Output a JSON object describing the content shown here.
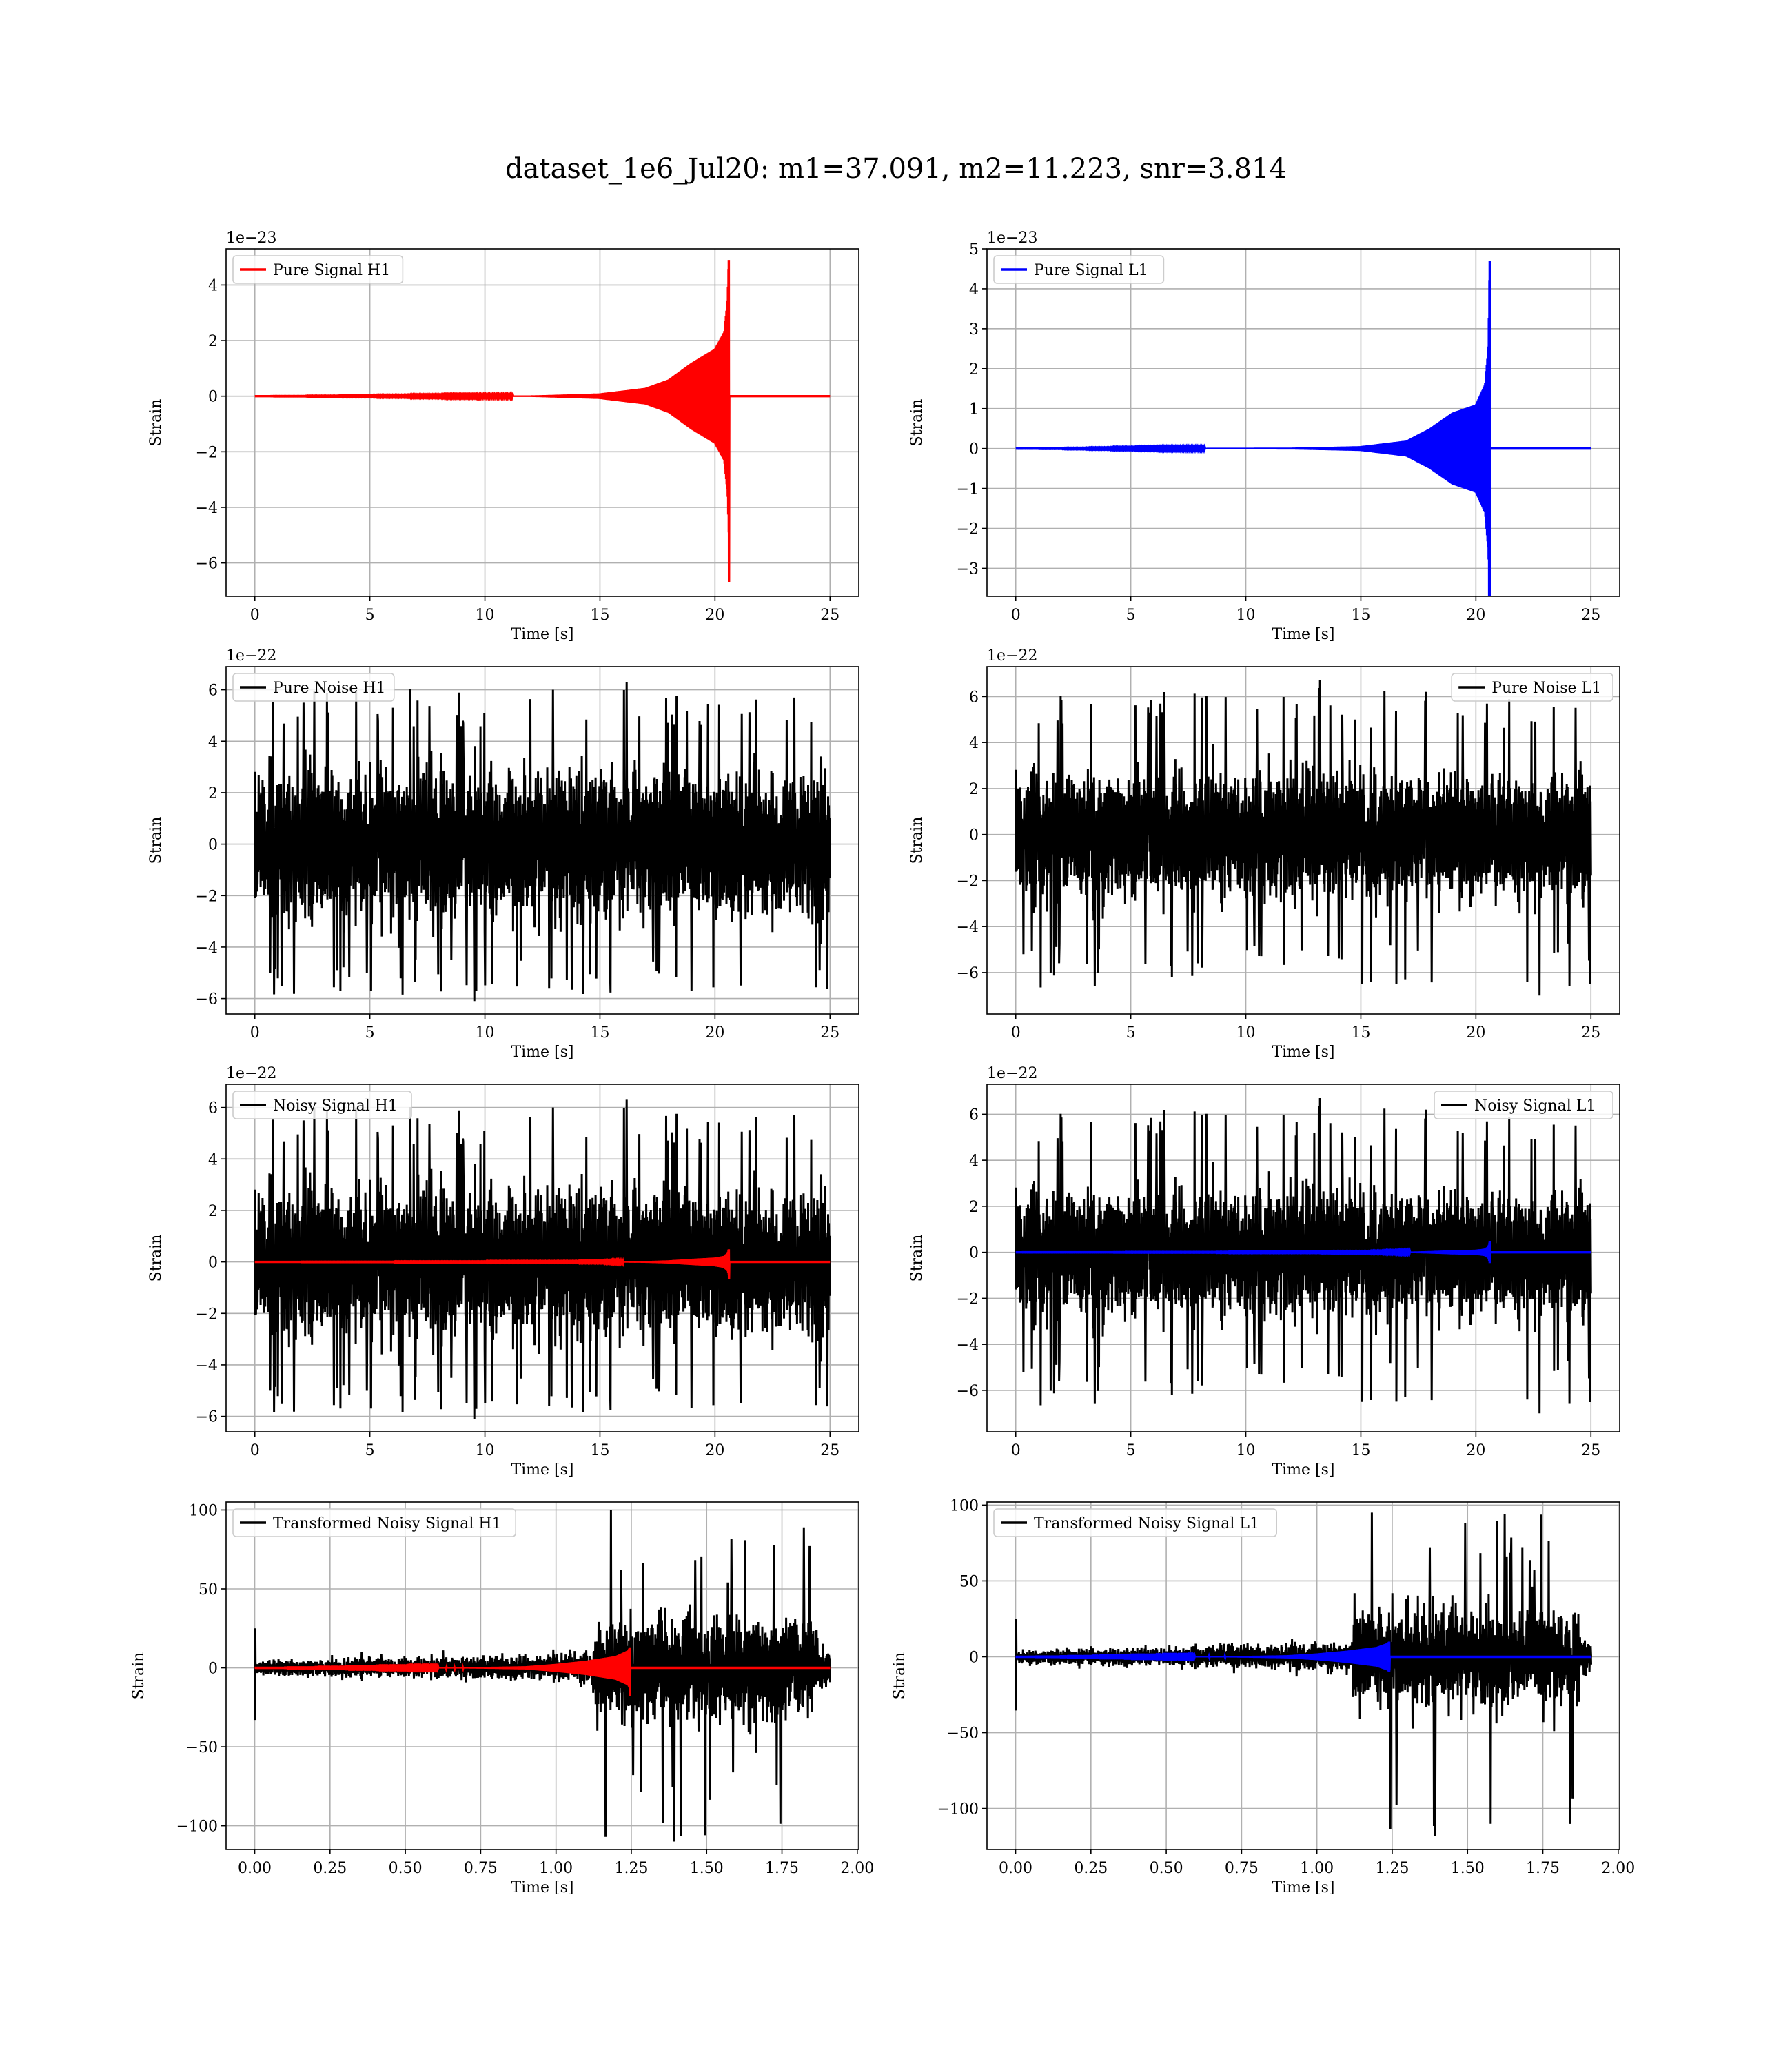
{
  "figure": {
    "title": "dataset_1e6_Jul20: m1=37.091, m2=11.223, snr=3.814"
  },
  "chart_data": [
    {
      "id": "pure-signal-h1",
      "type": "line",
      "xlabel": "Time [s]",
      "ylabel": "Strain",
      "offset_text": "1e−23",
      "xlim": [
        -1.25,
        26.25
      ],
      "ylim": [
        -7.2,
        5.3
      ],
      "xticks": [
        0,
        5,
        10,
        15,
        20,
        25
      ],
      "xtick_labels": [
        "0",
        "5",
        "10",
        "15",
        "20",
        "25"
      ],
      "yticks": [
        -6,
        -4,
        -2,
        0,
        2,
        4
      ],
      "ytick_labels": [
        "−6",
        "−4",
        "−2",
        "0",
        "2",
        "4"
      ],
      "grid": true,
      "legend_position": "upper-left",
      "series": [
        {
          "name": "Pure Signal H1",
          "color": "#ff0000",
          "kind": "chirp",
          "x_start": 0,
          "x_end": 25,
          "merger_time": 20.6,
          "envelope": [
            [
              0,
              0
            ],
            [
              12,
              0.02
            ],
            [
              15,
              0.1
            ],
            [
              17,
              0.3
            ],
            [
              18,
              0.6
            ],
            [
              19,
              1.2
            ],
            [
              20,
              1.7
            ],
            [
              20.4,
              2.3
            ],
            [
              20.55,
              3.5
            ],
            [
              20.6,
              4.9
            ],
            [
              20.61,
              0
            ]
          ],
          "peak_high": 4.9,
          "peak_low": -6.7
        }
      ]
    },
    {
      "id": "pure-signal-l1",
      "type": "line",
      "xlabel": "Time [s]",
      "ylabel": "Strain",
      "offset_text": "1e−23",
      "xlim": [
        -1.25,
        26.25
      ],
      "ylim": [
        -3.7,
        5.0
      ],
      "xticks": [
        0,
        5,
        10,
        15,
        20,
        25
      ],
      "xtick_labels": [
        "0",
        "5",
        "10",
        "15",
        "20",
        "25"
      ],
      "yticks": [
        -3,
        -2,
        -1,
        0,
        1,
        2,
        3,
        4,
        5
      ],
      "ytick_labels": [
        "−3",
        "−2",
        "−1",
        "0",
        "1",
        "2",
        "3",
        "4",
        "5"
      ],
      "grid": true,
      "legend_position": "upper-left",
      "series": [
        {
          "name": "Pure Signal L1",
          "color": "#0000ff",
          "kind": "chirp",
          "x_start": 0,
          "x_end": 25,
          "merger_time": 20.6,
          "envelope": [
            [
              0,
              0
            ],
            [
              12,
              0.02
            ],
            [
              15,
              0.06
            ],
            [
              17,
              0.2
            ],
            [
              18,
              0.5
            ],
            [
              19,
              0.9
            ],
            [
              20,
              1.1
            ],
            [
              20.4,
              1.6
            ],
            [
              20.55,
              2.6
            ],
            [
              20.6,
              4.7
            ],
            [
              20.61,
              0
            ]
          ],
          "peak_high": 4.7,
          "peak_low": -3.3
        }
      ]
    },
    {
      "id": "pure-noise-h1",
      "type": "line",
      "xlabel": "Time [s]",
      "ylabel": "Strain",
      "offset_text": "1e−22",
      "xlim": [
        -1.25,
        26.25
      ],
      "ylim": [
        -6.6,
        6.9
      ],
      "xticks": [
        0,
        5,
        10,
        15,
        20,
        25
      ],
      "xtick_labels": [
        "0",
        "5",
        "10",
        "15",
        "20",
        "25"
      ],
      "yticks": [
        -6,
        -4,
        -2,
        0,
        2,
        4,
        6
      ],
      "ytick_labels": [
        "−6",
        "−4",
        "−2",
        "0",
        "2",
        "4",
        "6"
      ],
      "grid": true,
      "legend_position": "upper-left",
      "series": [
        {
          "name": "Pure Noise H1",
          "color": "#000000",
          "kind": "noise",
          "x_start": 0,
          "x_end": 25,
          "core_amplitude": 3.6,
          "spike_high": 6.3,
          "spike_low": -6.1,
          "seed": 11
        }
      ]
    },
    {
      "id": "pure-noise-l1",
      "type": "line",
      "xlabel": "Time [s]",
      "ylabel": "Strain",
      "offset_text": "1e−22",
      "xlim": [
        -1.25,
        26.25
      ],
      "ylim": [
        -7.8,
        7.3
      ],
      "xticks": [
        0,
        5,
        10,
        15,
        20,
        25
      ],
      "xtick_labels": [
        "0",
        "5",
        "10",
        "15",
        "20",
        "25"
      ],
      "yticks": [
        -6,
        -4,
        -2,
        0,
        2,
        4,
        6
      ],
      "ytick_labels": [
        "−6",
        "−4",
        "−2",
        "0",
        "2",
        "4",
        "6"
      ],
      "grid": true,
      "legend_position": "upper-right",
      "series": [
        {
          "name": "Pure Noise L1",
          "color": "#000000",
          "kind": "noise",
          "x_start": 0,
          "x_end": 25,
          "core_amplitude": 3.5,
          "spike_high": 6.7,
          "spike_low": -7.0,
          "seed": 23
        }
      ]
    },
    {
      "id": "noisy-signal-h1",
      "type": "line",
      "xlabel": "Time [s]",
      "ylabel": "Strain",
      "offset_text": "1e−22",
      "xlim": [
        -1.25,
        26.25
      ],
      "ylim": [
        -6.6,
        6.9
      ],
      "xticks": [
        0,
        5,
        10,
        15,
        20,
        25
      ],
      "xtick_labels": [
        "0",
        "5",
        "10",
        "15",
        "20",
        "25"
      ],
      "yticks": [
        -6,
        -4,
        -2,
        0,
        2,
        4,
        6
      ],
      "ytick_labels": [
        "−6",
        "−4",
        "−2",
        "0",
        "2",
        "4",
        "6"
      ],
      "grid": true,
      "legend_position": "upper-left",
      "series": [
        {
          "name": "Noisy Signal H1",
          "color": "#000000",
          "kind": "noise",
          "x_start": 0,
          "x_end": 25,
          "core_amplitude": 3.6,
          "spike_high": 6.3,
          "spike_low": -6.1,
          "seed": 11
        },
        {
          "name": "",
          "color": "#ff0000",
          "kind": "chirp",
          "x_start": 0,
          "x_end": 25,
          "merger_time": 20.6,
          "envelope": [
            [
              0,
              0
            ],
            [
              15,
              0.01
            ],
            [
              17,
              0.03
            ],
            [
              18,
              0.06
            ],
            [
              19,
              0.12
            ],
            [
              20,
              0.17
            ],
            [
              20.4,
              0.23
            ],
            [
              20.55,
              0.35
            ],
            [
              20.6,
              0.49
            ],
            [
              20.61,
              0
            ]
          ],
          "peak_high": 0.49,
          "peak_low": -0.67
        }
      ]
    },
    {
      "id": "noisy-signal-l1",
      "type": "line",
      "xlabel": "Time [s]",
      "ylabel": "Strain",
      "offset_text": "1e−22",
      "xlim": [
        -1.25,
        26.25
      ],
      "ylim": [
        -7.8,
        7.3
      ],
      "xticks": [
        0,
        5,
        10,
        15,
        20,
        25
      ],
      "xtick_labels": [
        "0",
        "5",
        "10",
        "15",
        "20",
        "25"
      ],
      "yticks": [
        -6,
        -4,
        -2,
        0,
        2,
        4,
        6
      ],
      "ytick_labels": [
        "−6",
        "−4",
        "−2",
        "0",
        "2",
        "4",
        "6"
      ],
      "grid": true,
      "legend_position": "upper-right",
      "series": [
        {
          "name": "Noisy Signal L1",
          "color": "#000000",
          "kind": "noise",
          "x_start": 0,
          "x_end": 25,
          "core_amplitude": 3.5,
          "spike_high": 6.7,
          "spike_low": -7.0,
          "seed": 23
        },
        {
          "name": "",
          "color": "#0000ff",
          "kind": "chirp",
          "x_start": 0,
          "x_end": 25,
          "merger_time": 20.6,
          "envelope": [
            [
              0,
              0
            ],
            [
              15,
              0.01
            ],
            [
              17,
              0.02
            ],
            [
              18,
              0.05
            ],
            [
              19,
              0.09
            ],
            [
              20,
              0.11
            ],
            [
              20.4,
              0.16
            ],
            [
              20.55,
              0.26
            ],
            [
              20.6,
              0.47
            ],
            [
              20.61,
              0
            ]
          ],
          "peak_high": 0.47,
          "peak_low": -0.33
        }
      ]
    },
    {
      "id": "transformed-noisy-signal-h1",
      "type": "line",
      "xlabel": "Time [s]",
      "ylabel": "Strain",
      "offset_text": "",
      "xlim": [
        -0.095,
        2.005
      ],
      "ylim": [
        -115,
        105
      ],
      "xticks": [
        0,
        0.25,
        0.5,
        0.75,
        1.0,
        1.25,
        1.5,
        1.75,
        2.0
      ],
      "xtick_labels": [
        "0.00",
        "0.25",
        "0.50",
        "0.75",
        "1.00",
        "1.25",
        "1.50",
        "1.75",
        "2.00"
      ],
      "yticks": [
        -100,
        -50,
        0,
        50,
        100
      ],
      "ytick_labels": [
        "−100",
        "−50",
        "0",
        "50",
        "100"
      ],
      "grid": true,
      "legend_position": "upper-left",
      "series": [
        {
          "name": "Transformed Noisy Signal H1",
          "color": "#000000",
          "kind": "whitened",
          "x_start": 0,
          "x_end": 1.91,
          "burst_start": 1.12,
          "burst_end": 1.87,
          "quiet_amplitude": 6,
          "burst_amplitude": 42,
          "spike_high": 100,
          "spike_low": -110,
          "seed": 37
        },
        {
          "name": "",
          "color": "#ff0000",
          "kind": "chirp",
          "x_start": 0,
          "x_end": 1.91,
          "merger_time": 1.245,
          "envelope": [
            [
              0,
              0
            ],
            [
              0.7,
              0.3
            ],
            [
              0.9,
              1.0
            ],
            [
              1.0,
              2.5
            ],
            [
              1.1,
              4.5
            ],
            [
              1.2,
              7.5
            ],
            [
              1.24,
              11
            ],
            [
              1.245,
              13
            ],
            [
              1.246,
              0
            ]
          ],
          "peak_high": 13,
          "peak_low": -18
        }
      ]
    },
    {
      "id": "transformed-noisy-signal-l1",
      "type": "line",
      "xlabel": "Time [s]",
      "ylabel": "Strain",
      "offset_text": "",
      "xlim": [
        -0.095,
        2.005
      ],
      "ylim": [
        -127,
        102
      ],
      "xticks": [
        0,
        0.25,
        0.5,
        0.75,
        1.0,
        1.25,
        1.5,
        1.75,
        2.0
      ],
      "xtick_labels": [
        "0.00",
        "0.25",
        "0.50",
        "0.75",
        "1.00",
        "1.25",
        "1.50",
        "1.75",
        "2.00"
      ],
      "yticks": [
        -100,
        -50,
        0,
        50,
        100
      ],
      "ytick_labels": [
        "−100",
        "−50",
        "0",
        "50",
        "100"
      ],
      "grid": true,
      "legend_position": "upper-left",
      "series": [
        {
          "name": "Transformed Noisy Signal L1",
          "color": "#000000",
          "kind": "whitened",
          "x_start": 0,
          "x_end": 1.91,
          "burst_start": 1.12,
          "burst_end": 1.87,
          "quiet_amplitude": 6,
          "burst_amplitude": 40,
          "spike_high": 95,
          "spike_low": -118,
          "seed": 53
        },
        {
          "name": "",
          "color": "#0000ff",
          "kind": "chirp",
          "x_start": 0,
          "x_end": 1.91,
          "merger_time": 1.24,
          "envelope": [
            [
              0,
              0
            ],
            [
              0.7,
              0.3
            ],
            [
              0.9,
              1.0
            ],
            [
              1.0,
              2.2
            ],
            [
              1.1,
              4.0
            ],
            [
              1.2,
              6.5
            ],
            [
              1.235,
              9
            ],
            [
              1.24,
              10
            ],
            [
              1.241,
              0
            ]
          ],
          "peak_high": 10,
          "peak_low": -9
        }
      ]
    }
  ]
}
